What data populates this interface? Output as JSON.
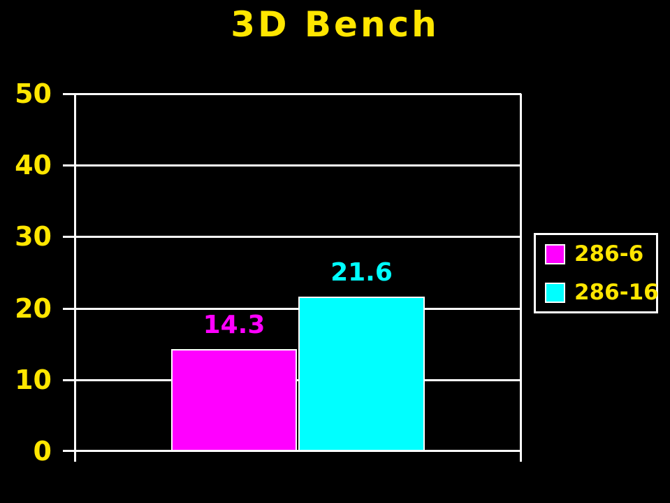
{
  "chart_data": {
    "type": "bar",
    "title": "3D Bench",
    "xlabel": "",
    "ylabel": "",
    "ylim": [
      0,
      50
    ],
    "yticks": [
      50,
      40,
      30,
      20,
      10,
      0
    ],
    "grid": true,
    "legend_position": "right",
    "series": [
      {
        "name": "286-6",
        "value": 14.3,
        "color": "#ff00ff"
      },
      {
        "name": "286-16",
        "value": 21.6,
        "color": "#00ffff"
      }
    ]
  },
  "colors": {
    "background": "#000000",
    "axis": "#ffffff",
    "label_yellow": "#ffe600"
  }
}
